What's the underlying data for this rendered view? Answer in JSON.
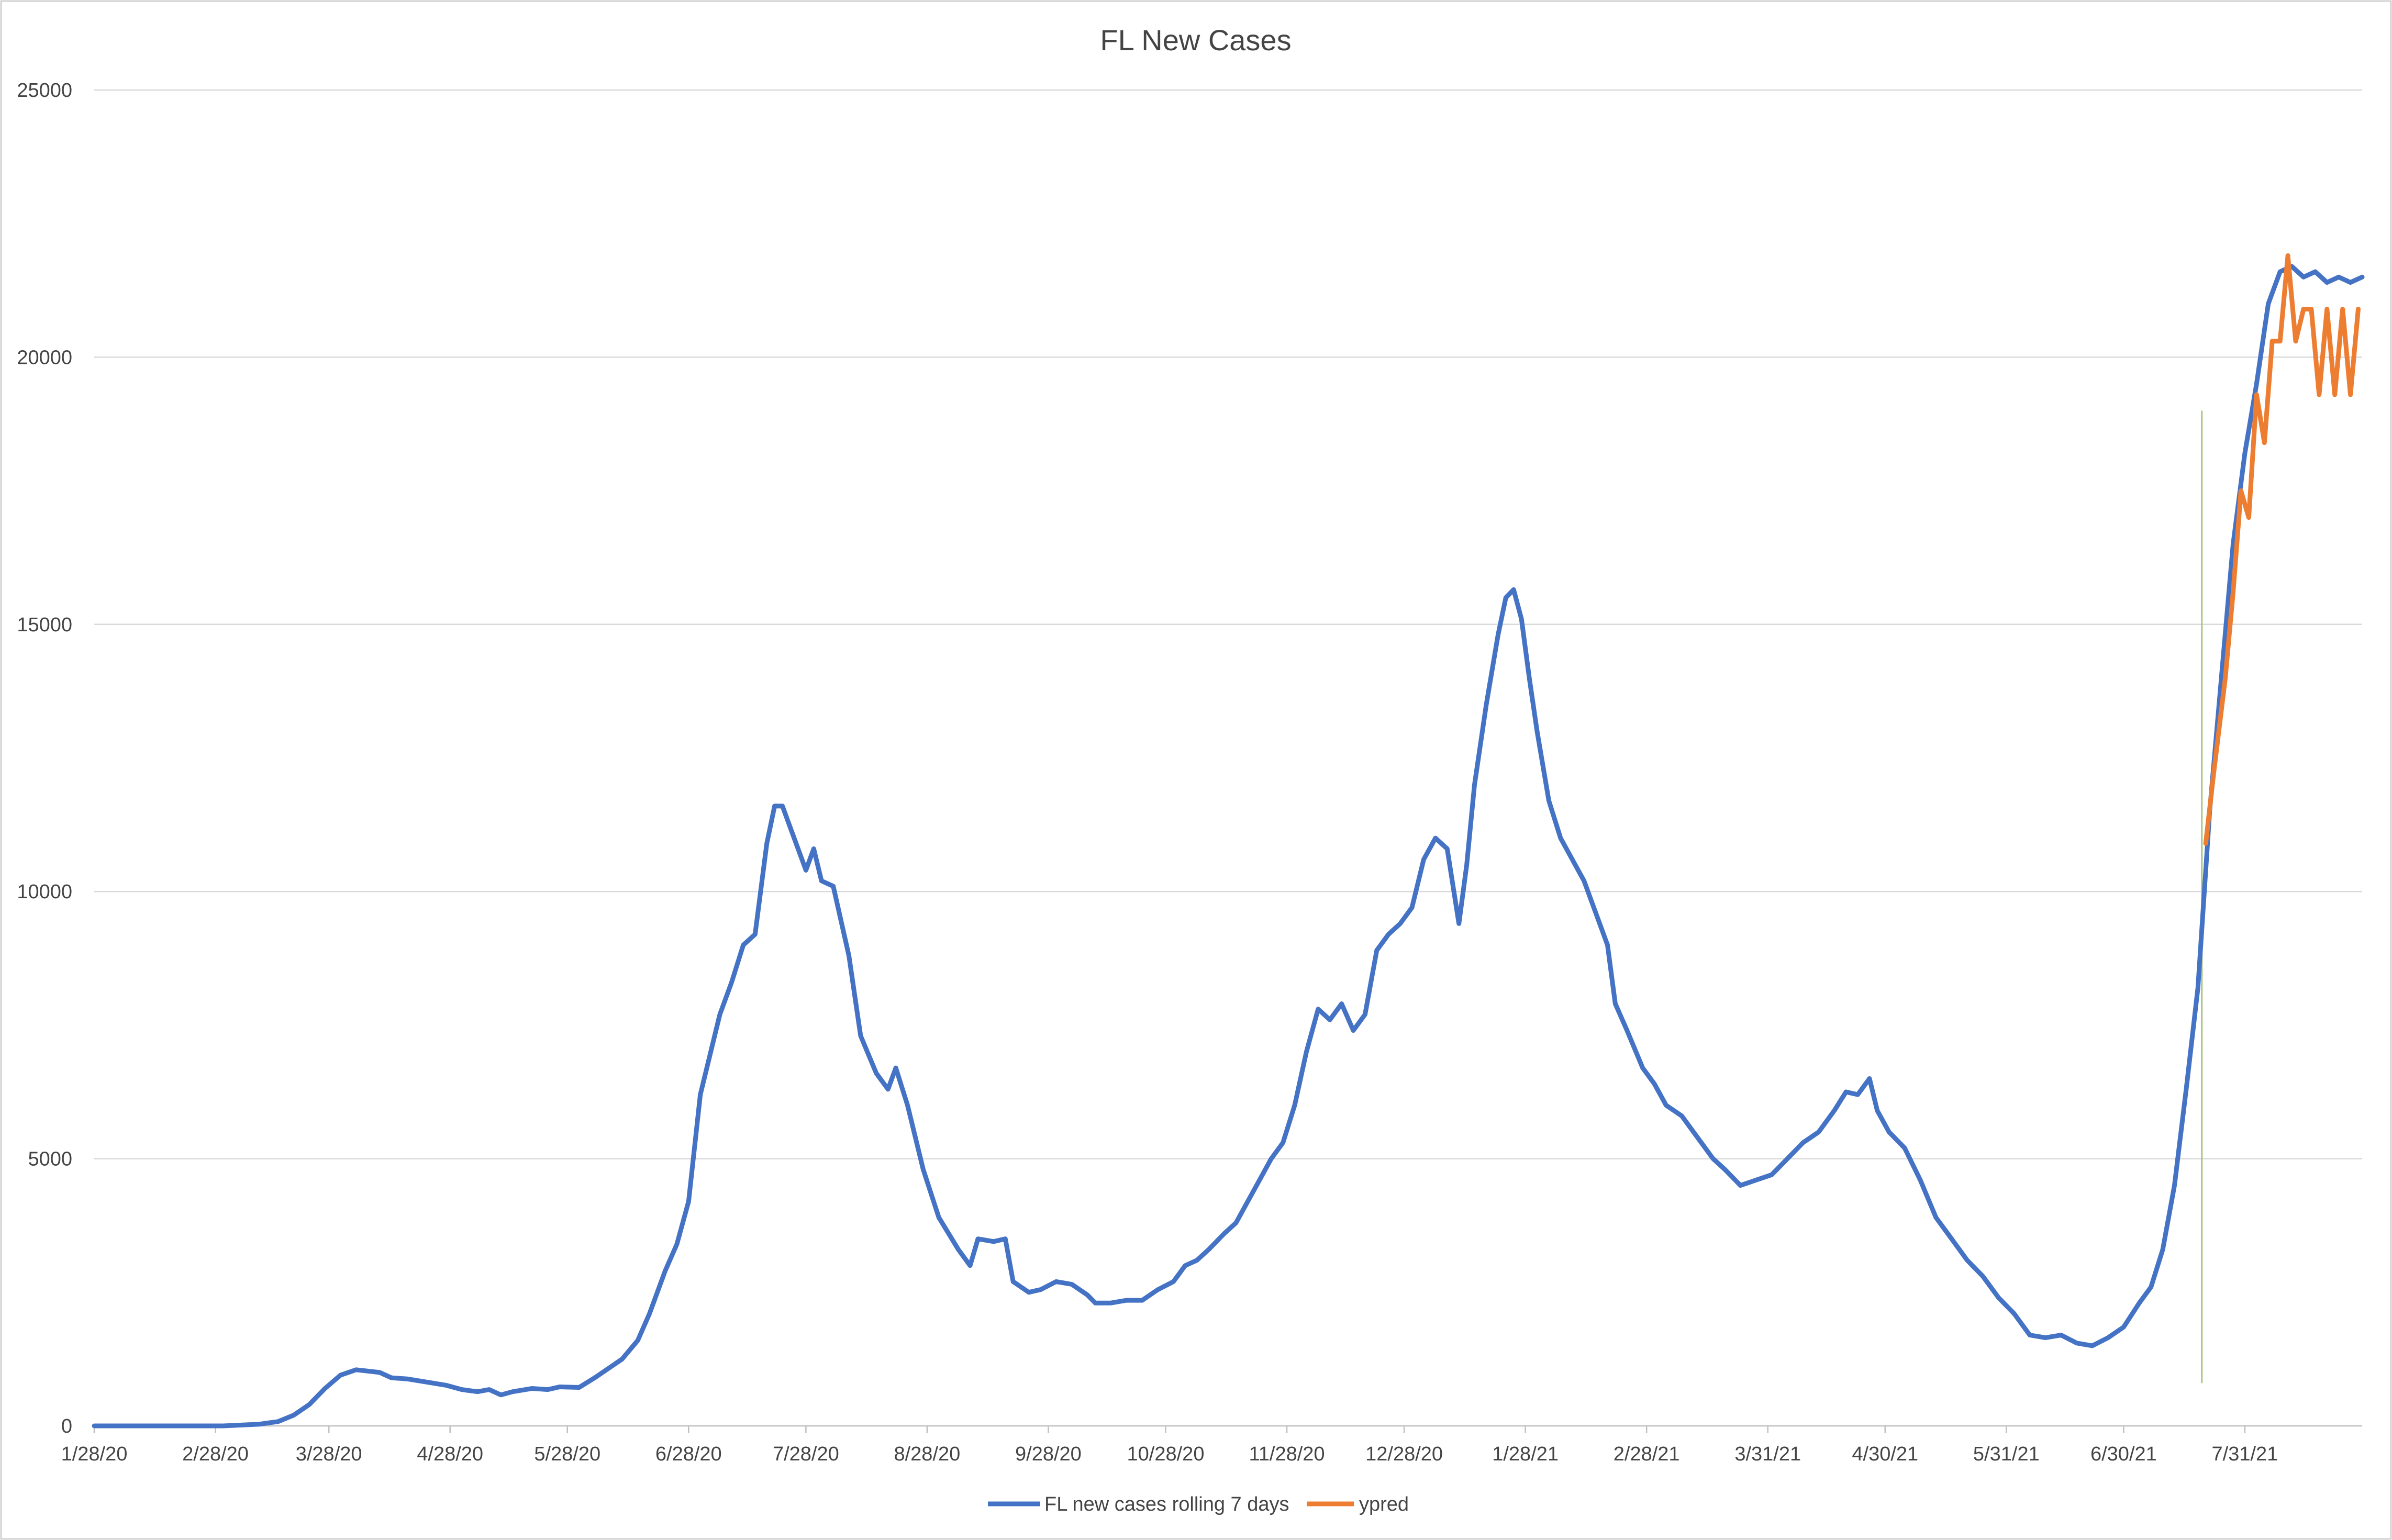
{
  "chart_data": {
    "type": "line",
    "title": "FL New Cases",
    "xlabel": "",
    "ylabel": "",
    "x_tick_labels": [
      "1/28/20",
      "2/28/20",
      "3/28/20",
      "4/28/20",
      "5/28/20",
      "6/28/20",
      "7/28/20",
      "8/28/20",
      "9/28/20",
      "10/28/20",
      "11/28/20",
      "12/28/20",
      "1/28/21",
      "2/28/21",
      "3/31/21",
      "4/30/21",
      "5/31/21",
      "6/30/21",
      "7/31/21"
    ],
    "x_tick_dates": [
      "2020-01-28",
      "2020-02-28",
      "2020-03-28",
      "2020-04-28",
      "2020-05-28",
      "2020-06-28",
      "2020-07-28",
      "2020-08-28",
      "2020-09-28",
      "2020-10-28",
      "2020-11-28",
      "2020-12-28",
      "2021-01-28",
      "2021-02-28",
      "2021-03-31",
      "2021-04-30",
      "2021-05-31",
      "2021-06-30",
      "2021-07-31"
    ],
    "xlim": [
      "2020-01-28",
      "2021-08-30"
    ],
    "ylim": [
      0,
      25000
    ],
    "y_ticks": [
      0,
      5000,
      10000,
      15000,
      20000,
      25000
    ],
    "grid": "horizontal",
    "legend_position": "bottom",
    "annotations": [
      {
        "type": "vertical-line",
        "x": "2021-07-20",
        "y_range": [
          800,
          19000
        ],
        "color": "#a9c47f"
      }
    ],
    "series": [
      {
        "name": "FL new cases rolling 7 days",
        "color": "#4472c4",
        "points": [
          [
            "2020-01-28",
            0
          ],
          [
            "2020-03-01",
            0
          ],
          [
            "2020-03-10",
            30
          ],
          [
            "2020-03-15",
            80
          ],
          [
            "2020-03-19",
            200
          ],
          [
            "2020-03-23",
            400
          ],
          [
            "2020-03-27",
            700
          ],
          [
            "2020-03-31",
            950
          ],
          [
            "2020-04-04",
            1050
          ],
          [
            "2020-04-10",
            1000
          ],
          [
            "2020-04-13",
            900
          ],
          [
            "2020-04-17",
            880
          ],
          [
            "2020-04-22",
            820
          ],
          [
            "2020-04-27",
            760
          ],
          [
            "2020-05-01",
            680
          ],
          [
            "2020-05-05",
            640
          ],
          [
            "2020-05-08",
            680
          ],
          [
            "2020-05-11",
            580
          ],
          [
            "2020-05-14",
            640
          ],
          [
            "2020-05-19",
            700
          ],
          [
            "2020-05-23",
            680
          ],
          [
            "2020-05-26",
            730
          ],
          [
            "2020-05-31",
            720
          ],
          [
            "2020-06-04",
            900
          ],
          [
            "2020-06-08",
            1100
          ],
          [
            "2020-06-11",
            1250
          ],
          [
            "2020-06-15",
            1600
          ],
          [
            "2020-06-18",
            2100
          ],
          [
            "2020-06-22",
            2900
          ],
          [
            "2020-06-25",
            3400
          ],
          [
            "2020-06-28",
            4200
          ],
          [
            "2020-07-01",
            6200
          ],
          [
            "2020-07-03",
            6800
          ],
          [
            "2020-07-06",
            7700
          ],
          [
            "2020-07-09",
            8300
          ],
          [
            "2020-07-12",
            9000
          ],
          [
            "2020-07-15",
            9200
          ],
          [
            "2020-07-18",
            10900
          ],
          [
            "2020-07-20",
            11600
          ],
          [
            "2020-07-22",
            11600
          ],
          [
            "2020-07-25",
            11000
          ],
          [
            "2020-07-28",
            10400
          ],
          [
            "2020-07-30",
            10800
          ],
          [
            "2020-08-01",
            10200
          ],
          [
            "2020-08-04",
            10100
          ],
          [
            "2020-08-08",
            8800
          ],
          [
            "2020-08-11",
            7300
          ],
          [
            "2020-08-15",
            6600
          ],
          [
            "2020-08-18",
            6300
          ],
          [
            "2020-08-20",
            6700
          ],
          [
            "2020-08-23",
            6000
          ],
          [
            "2020-08-27",
            4800
          ],
          [
            "2020-08-31",
            3900
          ],
          [
            "2020-09-05",
            3300
          ],
          [
            "2020-09-08",
            3000
          ],
          [
            "2020-09-10",
            3500
          ],
          [
            "2020-09-14",
            3450
          ],
          [
            "2020-09-17",
            3500
          ],
          [
            "2020-09-19",
            2700
          ],
          [
            "2020-09-23",
            2500
          ],
          [
            "2020-09-26",
            2550
          ],
          [
            "2020-09-30",
            2700
          ],
          [
            "2020-10-04",
            2650
          ],
          [
            "2020-10-08",
            2450
          ],
          [
            "2020-10-10",
            2300
          ],
          [
            "2020-10-14",
            2300
          ],
          [
            "2020-10-18",
            2350
          ],
          [
            "2020-10-22",
            2350
          ],
          [
            "2020-10-26",
            2550
          ],
          [
            "2020-10-30",
            2700
          ],
          [
            "2020-11-02",
            3000
          ],
          [
            "2020-11-05",
            3100
          ],
          [
            "2020-11-08",
            3300
          ],
          [
            "2020-11-12",
            3600
          ],
          [
            "2020-11-15",
            3800
          ],
          [
            "2020-11-18",
            4200
          ],
          [
            "2020-11-21",
            4600
          ],
          [
            "2020-11-24",
            5000
          ],
          [
            "2020-11-27",
            5300
          ],
          [
            "2020-11-30",
            6000
          ],
          [
            "2020-12-03",
            7000
          ],
          [
            "2020-12-06",
            7800
          ],
          [
            "2020-12-09",
            7600
          ],
          [
            "2020-12-12",
            7900
          ],
          [
            "2020-12-15",
            7400
          ],
          [
            "2020-12-18",
            7700
          ],
          [
            "2020-12-21",
            8900
          ],
          [
            "2020-12-24",
            9200
          ],
          [
            "2020-12-27",
            9400
          ],
          [
            "2020-12-30",
            9700
          ],
          [
            "2021-01-02",
            10600
          ],
          [
            "2021-01-05",
            11000
          ],
          [
            "2021-01-08",
            10800
          ],
          [
            "2021-01-11",
            9400
          ],
          [
            "2021-01-13",
            10500
          ],
          [
            "2021-01-15",
            12000
          ],
          [
            "2021-01-18",
            13500
          ],
          [
            "2021-01-21",
            14800
          ],
          [
            "2021-01-23",
            15500
          ],
          [
            "2021-01-25",
            15650
          ],
          [
            "2021-01-27",
            15100
          ],
          [
            "2021-01-29",
            14000
          ],
          [
            "2021-01-31",
            13000
          ],
          [
            "2021-02-03",
            11700
          ],
          [
            "2021-02-06",
            11000
          ],
          [
            "2021-02-09",
            10600
          ],
          [
            "2021-02-12",
            10200
          ],
          [
            "2021-02-15",
            9600
          ],
          [
            "2021-02-18",
            9000
          ],
          [
            "2021-02-20",
            7900
          ],
          [
            "2021-02-23",
            7400
          ],
          [
            "2021-02-27",
            6700
          ],
          [
            "2021-03-02",
            6400
          ],
          [
            "2021-03-05",
            6000
          ],
          [
            "2021-03-09",
            5800
          ],
          [
            "2021-03-13",
            5400
          ],
          [
            "2021-03-17",
            5000
          ],
          [
            "2021-03-20",
            4800
          ],
          [
            "2021-03-24",
            4500
          ],
          [
            "2021-03-28",
            4600
          ],
          [
            "2021-04-01",
            4700
          ],
          [
            "2021-04-05",
            5000
          ],
          [
            "2021-04-09",
            5300
          ],
          [
            "2021-04-13",
            5500
          ],
          [
            "2021-04-17",
            5900
          ],
          [
            "2021-04-20",
            6250
          ],
          [
            "2021-04-23",
            6200
          ],
          [
            "2021-04-26",
            6500
          ],
          [
            "2021-04-28",
            5900
          ],
          [
            "2021-05-01",
            5500
          ],
          [
            "2021-05-05",
            5200
          ],
          [
            "2021-05-09",
            4600
          ],
          [
            "2021-05-13",
            3900
          ],
          [
            "2021-05-17",
            3500
          ],
          [
            "2021-05-21",
            3100
          ],
          [
            "2021-05-25",
            2800
          ],
          [
            "2021-05-29",
            2400
          ],
          [
            "2021-06-02",
            2100
          ],
          [
            "2021-06-06",
            1700
          ],
          [
            "2021-06-10",
            1650
          ],
          [
            "2021-06-14",
            1700
          ],
          [
            "2021-06-18",
            1550
          ],
          [
            "2021-06-22",
            1500
          ],
          [
            "2021-06-26",
            1650
          ],
          [
            "2021-06-30",
            1850
          ],
          [
            "2021-07-04",
            2300
          ],
          [
            "2021-07-07",
            2600
          ],
          [
            "2021-07-10",
            3300
          ],
          [
            "2021-07-13",
            4500
          ],
          [
            "2021-07-16",
            6300
          ],
          [
            "2021-07-19",
            8200
          ],
          [
            "2021-07-22",
            11500
          ],
          [
            "2021-07-25",
            14000
          ],
          [
            "2021-07-28",
            16500
          ],
          [
            "2021-07-31",
            18200
          ],
          [
            "2021-08-03",
            19500
          ],
          [
            "2021-08-06",
            21000
          ],
          [
            "2021-08-09",
            21600
          ],
          [
            "2021-08-12",
            21700
          ],
          [
            "2021-08-15",
            21500
          ],
          [
            "2021-08-18",
            21600
          ],
          [
            "2021-08-21",
            21400
          ],
          [
            "2021-08-24",
            21500
          ],
          [
            "2021-08-27",
            21400
          ],
          [
            "2021-08-30",
            21500
          ]
        ]
      },
      {
        "name": "ypred",
        "color": "#ed7d31",
        "points": [
          [
            "2021-07-21",
            10900
          ],
          [
            "2021-07-23",
            12200
          ],
          [
            "2021-07-26",
            14000
          ],
          [
            "2021-07-28",
            15600
          ],
          [
            "2021-07-30",
            17500
          ],
          [
            "2021-08-01",
            17000
          ],
          [
            "2021-08-03",
            19300
          ],
          [
            "2021-08-05",
            18400
          ],
          [
            "2021-08-07",
            20300
          ],
          [
            "2021-08-09",
            20300
          ],
          [
            "2021-08-11",
            21900
          ],
          [
            "2021-08-13",
            20300
          ],
          [
            "2021-08-15",
            20900
          ],
          [
            "2021-08-17",
            20900
          ],
          [
            "2021-08-19",
            19300
          ],
          [
            "2021-08-21",
            20900
          ],
          [
            "2021-08-23",
            19300
          ],
          [
            "2021-08-25",
            20900
          ],
          [
            "2021-08-27",
            19300
          ],
          [
            "2021-08-29",
            20900
          ]
        ]
      }
    ]
  }
}
